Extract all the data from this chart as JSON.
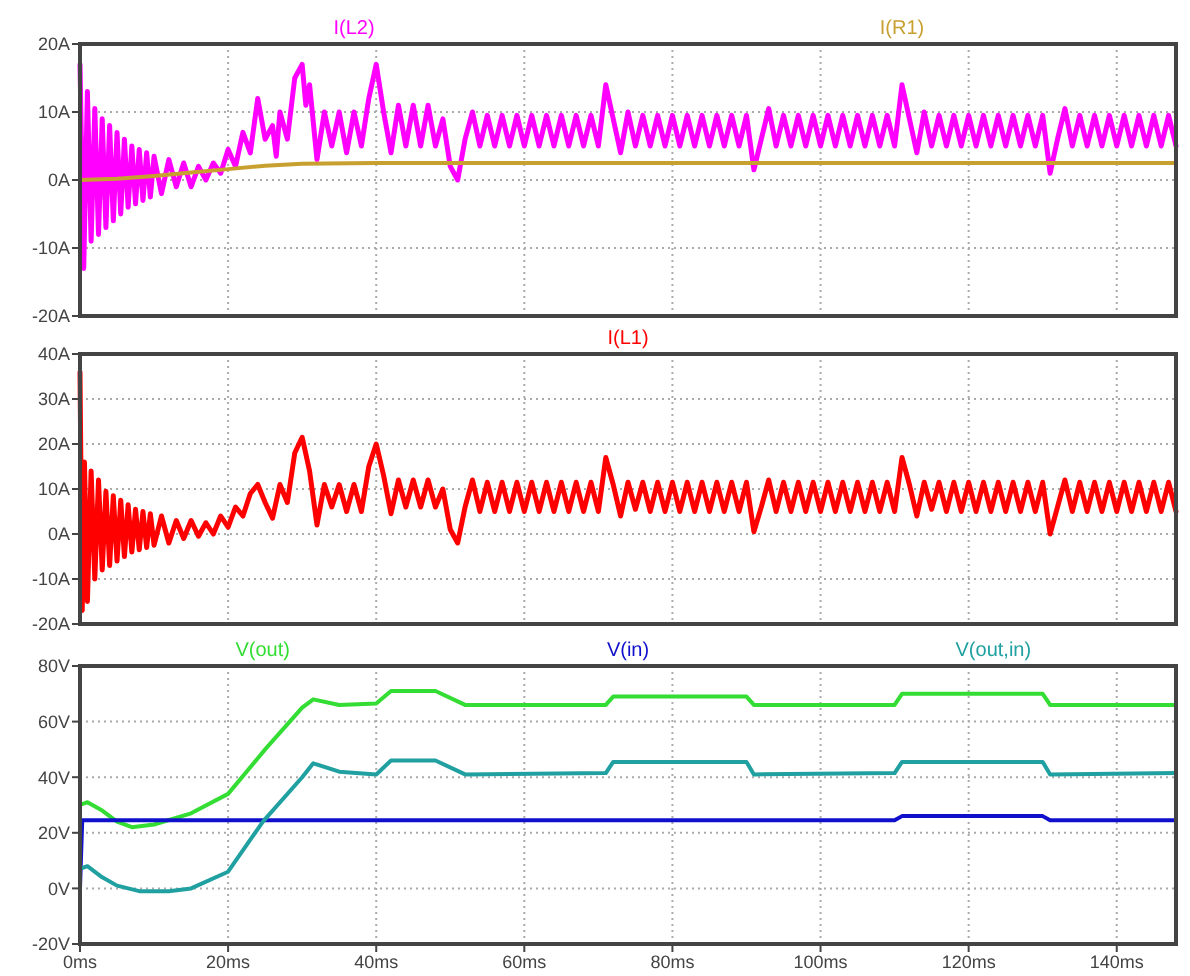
{
  "chart_data": [
    {
      "type": "line",
      "xlim": [
        0,
        148
      ],
      "ylim": [
        -20,
        20
      ],
      "grid": true,
      "legend": "top",
      "tick_labels": "y",
      "xticks": [
        {
          "value": 0,
          "label": null
        },
        {
          "value": 20,
          "label": null
        },
        {
          "value": 40,
          "label": null
        },
        {
          "value": 60,
          "label": null
        },
        {
          "value": 80,
          "label": null
        },
        {
          "value": 100,
          "label": null
        },
        {
          "value": 120,
          "label": null
        },
        {
          "value": 140,
          "label": null
        }
      ],
      "yticks": [
        {
          "value": 20,
          "label": "20A"
        },
        {
          "value": 10,
          "label": "10A"
        },
        {
          "value": 0,
          "label": "0A"
        },
        {
          "value": -10,
          "label": "-10A"
        },
        {
          "value": -20,
          "label": "-20A"
        }
      ],
      "series": [
        {
          "name": "I(L2)",
          "color": "#ff00ff",
          "x": [
            0,
            0.5,
            1,
            1.5,
            2,
            2.5,
            3,
            3.5,
            4,
            4.5,
            5,
            5.5,
            6,
            6.5,
            7,
            7.5,
            8,
            8.5,
            9,
            9.5,
            10,
            11,
            12,
            13,
            14,
            15,
            16,
            17,
            18,
            19,
            20,
            21,
            22,
            23,
            24,
            25,
            26,
            26.5,
            27,
            28,
            29,
            30,
            30.5,
            31,
            32,
            33,
            34,
            35,
            36,
            37,
            38,
            39,
            40,
            41,
            42,
            43,
            44,
            45,
            46,
            47,
            48,
            49,
            50,
            51,
            52,
            53,
            54,
            55,
            56,
            57,
            58,
            59,
            60,
            61,
            62,
            63,
            64,
            65,
            66,
            67,
            68,
            69,
            70,
            71,
            72,
            73,
            74,
            75,
            76,
            77,
            78,
            79,
            80,
            81,
            82,
            83,
            84,
            85,
            86,
            87,
            88,
            89,
            90,
            91,
            92,
            93,
            94,
            95,
            96,
            97,
            98,
            99,
            100,
            101,
            102,
            103,
            104,
            105,
            106,
            107,
            108,
            109,
            110,
            111,
            112,
            113,
            114,
            115,
            116,
            117,
            118,
            119,
            120,
            121,
            122,
            123,
            124,
            125,
            126,
            127,
            128,
            129,
            130,
            131,
            132,
            133,
            134,
            135,
            136,
            137,
            138,
            139,
            140,
            141,
            142,
            143,
            144,
            145,
            146,
            147,
            148
          ],
          "values": [
            17,
            -13,
            13,
            -9,
            10.5,
            -8,
            9,
            -7,
            8,
            -6,
            7,
            -5,
            6,
            -4,
            5,
            -3.5,
            4.5,
            -3,
            4,
            -2.5,
            3.5,
            -2,
            3,
            -1,
            2.5,
            -1,
            2,
            0,
            2.5,
            1,
            4.5,
            2,
            7,
            4,
            12,
            6,
            8,
            3.5,
            10,
            6,
            15,
            17,
            11,
            14,
            3,
            10,
            5,
            10,
            4,
            10,
            5,
            12,
            17,
            10,
            4,
            11,
            5,
            11,
            5,
            11,
            5,
            9,
            2,
            0,
            6,
            10,
            5,
            9.5,
            5,
            9.5,
            5,
            9.5,
            5,
            9.5,
            5,
            9.5,
            5,
            9.5,
            5,
            9.5,
            5,
            9.5,
            5,
            14,
            9,
            4,
            10,
            5,
            9.5,
            5,
            9.5,
            5,
            9.5,
            5,
            9.5,
            5,
            9.5,
            5,
            9.5,
            5,
            9.5,
            5,
            9.5,
            1.5,
            6,
            10.5,
            5,
            9.5,
            5,
            9.5,
            5,
            9.5,
            5,
            9.5,
            5,
            9.5,
            5,
            9.5,
            5,
            9.5,
            5,
            9.5,
            5,
            14,
            9,
            4,
            10,
            5,
            9.5,
            5,
            9.5,
            5,
            9.5,
            5,
            9.5,
            5,
            9.5,
            5,
            9.5,
            5,
            9.5,
            5,
            9.5,
            1,
            6,
            10.5,
            5,
            9.5,
            5,
            9.5,
            5,
            9.5,
            5,
            9.5,
            5,
            9.5,
            5,
            9.5,
            5,
            9.5,
            5
          ]
        },
        {
          "name": "I(R1)",
          "color": "#c8a030",
          "x": [
            0,
            5,
            10,
            15,
            20,
            25,
            30,
            40,
            148
          ],
          "values": [
            0,
            0.2,
            0.6,
            1.1,
            1.6,
            2.1,
            2.4,
            2.5,
            2.5
          ]
        }
      ]
    },
    {
      "type": "line",
      "xlim": [
        0,
        148
      ],
      "ylim": [
        -20,
        40
      ],
      "grid": true,
      "legend": "top",
      "tick_labels": "y",
      "xticks": [
        {
          "value": 0,
          "label": null
        },
        {
          "value": 20,
          "label": null
        },
        {
          "value": 40,
          "label": null
        },
        {
          "value": 60,
          "label": null
        },
        {
          "value": 80,
          "label": null
        },
        {
          "value": 100,
          "label": null
        },
        {
          "value": 120,
          "label": null
        },
        {
          "value": 140,
          "label": null
        }
      ],
      "yticks": [
        {
          "value": 40,
          "label": "40A"
        },
        {
          "value": 30,
          "label": "30A"
        },
        {
          "value": 20,
          "label": "20A"
        },
        {
          "value": 10,
          "label": "10A"
        },
        {
          "value": 0,
          "label": "0A"
        },
        {
          "value": -10,
          "label": "-10A"
        },
        {
          "value": -20,
          "label": "-20A"
        }
      ],
      "series": [
        {
          "name": "I(L1)",
          "color": "#ff0000",
          "x": [
            0,
            0.3,
            0.6,
            1,
            1.5,
            2,
            2.5,
            3,
            3.5,
            4,
            4.5,
            5,
            5.5,
            6,
            6.5,
            7,
            7.5,
            8,
            8.5,
            9,
            9.5,
            10,
            11,
            12,
            13,
            14,
            15,
            16,
            17,
            18,
            19,
            20,
            21,
            22,
            23,
            24,
            25,
            26,
            27,
            28,
            29,
            30,
            31,
            32,
            33,
            34,
            35,
            36,
            37,
            38,
            39,
            40,
            41,
            42,
            43,
            44,
            45,
            46,
            47,
            48,
            49,
            50,
            51,
            52,
            53,
            54,
            55,
            56,
            57,
            58,
            59,
            60,
            61,
            62,
            63,
            64,
            65,
            66,
            67,
            68,
            69,
            70,
            71,
            72,
            73,
            74,
            75,
            76,
            77,
            78,
            79,
            80,
            81,
            82,
            83,
            84,
            85,
            86,
            87,
            88,
            89,
            90,
            91,
            92,
            93,
            94,
            95,
            96,
            97,
            98,
            99,
            100,
            101,
            102,
            103,
            104,
            105,
            106,
            107,
            108,
            109,
            110,
            111,
            112,
            113,
            114,
            115,
            116,
            117,
            118,
            119,
            120,
            121,
            122,
            123,
            124,
            125,
            126,
            127,
            128,
            129,
            130,
            131,
            132,
            133,
            134,
            135,
            136,
            137,
            138,
            139,
            140,
            141,
            142,
            143,
            144,
            145,
            146,
            147,
            148
          ],
          "values": [
            36,
            -17,
            16,
            -15,
            14,
            -10,
            12,
            -8,
            9.5,
            -7,
            8.5,
            -6,
            7.5,
            -5,
            6.5,
            -4,
            5.5,
            -3.5,
            5,
            -3,
            4.5,
            -2.5,
            4,
            -2,
            3,
            -1,
            3,
            -0.5,
            2.5,
            0,
            4,
            1.5,
            6,
            4,
            9,
            11,
            7,
            3.5,
            11,
            7,
            18,
            21.5,
            14,
            2,
            11,
            6,
            11,
            5,
            11,
            5,
            15,
            20,
            13,
            4.5,
            12,
            6,
            12,
            6,
            12,
            6,
            10,
            1,
            -2,
            6,
            12,
            5,
            11.5,
            5,
            11.5,
            5,
            11.5,
            5,
            11.5,
            5,
            11.5,
            5,
            11.5,
            5,
            11.5,
            5,
            11.5,
            5,
            17,
            11,
            4,
            11.5,
            5.5,
            11.5,
            5,
            11.5,
            5,
            11.5,
            5,
            11.5,
            5,
            11.5,
            5,
            11.5,
            5,
            11.5,
            5,
            11.5,
            0.5,
            6,
            12,
            5,
            11.5,
            5,
            11.5,
            5,
            11.5,
            5,
            11.5,
            5,
            11.5,
            5,
            11.5,
            5,
            11.5,
            5,
            11.5,
            5,
            17,
            11,
            4,
            11.5,
            5.5,
            11.5,
            5,
            11.5,
            5,
            11.5,
            5,
            11.5,
            5,
            11.5,
            5,
            11.5,
            5,
            11.5,
            5,
            11.5,
            0,
            6,
            12,
            5,
            11.5,
            5,
            11.5,
            5,
            11.5,
            5,
            11.5,
            5,
            11.5,
            5,
            11.5,
            5,
            11.5,
            5
          ]
        }
      ]
    },
    {
      "type": "line",
      "xlim": [
        0,
        148
      ],
      "ylim": [
        -20,
        80
      ],
      "grid": true,
      "legend": "top",
      "xticks": [
        {
          "value": 0,
          "label": "0ms"
        },
        {
          "value": 20,
          "label": "20ms"
        },
        {
          "value": 40,
          "label": "40ms"
        },
        {
          "value": 60,
          "label": "60ms"
        },
        {
          "value": 80,
          "label": "80ms"
        },
        {
          "value": 100,
          "label": "100ms"
        },
        {
          "value": 120,
          "label": "120ms"
        },
        {
          "value": 140,
          "label": "140ms"
        }
      ],
      "yticks": [
        {
          "value": 80,
          "label": "80V"
        },
        {
          "value": 60,
          "label": "60V"
        },
        {
          "value": 40,
          "label": "40V"
        },
        {
          "value": 20,
          "label": "20V"
        },
        {
          "value": 0,
          "label": "0V"
        },
        {
          "value": -20,
          "label": "-20V"
        }
      ],
      "series": [
        {
          "name": "V(out)",
          "color": "#33dd33",
          "x": [
            0,
            1,
            3,
            5,
            7,
            10,
            15,
            20,
            25,
            30,
            31.5,
            35,
            40,
            42,
            48,
            52,
            71,
            72,
            90,
            91,
            110,
            111,
            130,
            131,
            148
          ],
          "values": [
            30,
            31,
            28,
            24,
            22,
            23,
            27,
            34,
            50,
            65,
            68,
            66,
            66.5,
            71,
            71,
            66,
            66,
            69,
            69,
            66,
            66,
            70,
            70,
            66,
            66
          ]
        },
        {
          "name": "V(in)",
          "color": "#1010cc",
          "x": [
            0,
            0.3,
            110,
            111,
            130,
            131,
            148
          ],
          "values": [
            0,
            24.5,
            24.5,
            26,
            26,
            24.5,
            24.5
          ]
        },
        {
          "name": "V(out,in)",
          "color": "#20a0a0",
          "x": [
            0,
            1,
            3,
            5,
            8,
            12,
            15,
            20,
            24.7,
            30,
            31.5,
            35,
            40,
            42,
            48,
            52,
            71,
            72,
            90,
            91,
            110,
            111,
            130,
            131,
            148
          ],
          "values": [
            7,
            8,
            4,
            1,
            -1,
            -1,
            0,
            6,
            24,
            40,
            45,
            42,
            41,
            46,
            46,
            41,
            41.5,
            45.5,
            45.5,
            41,
            41.5,
            45.5,
            45.5,
            41,
            41.5
          ]
        }
      ]
    }
  ]
}
